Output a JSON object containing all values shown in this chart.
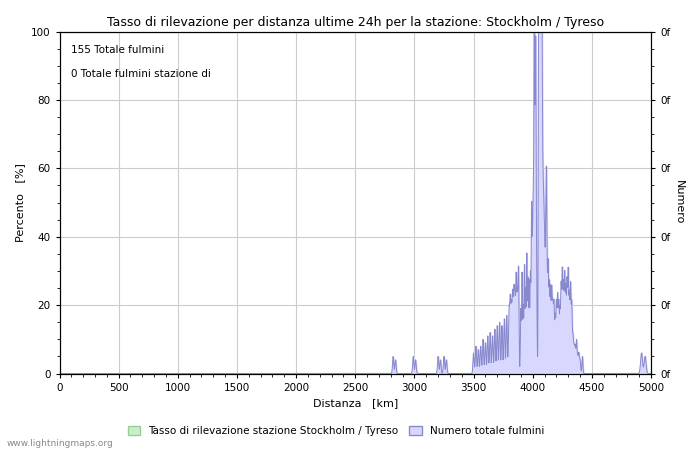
{
  "title": "Tasso di rilevazione per distanza ultime 24h per la stazione: Stockholm / Tyreso",
  "xlabel": "Distanza   [km]",
  "ylabel_left": "Percento   [%]",
  "ylabel_right": "Numero",
  "xlim": [
    0,
    5000
  ],
  "ylim": [
    0,
    100
  ],
  "xticks": [
    0,
    500,
    1000,
    1500,
    2000,
    2500,
    3000,
    3500,
    4000,
    4500,
    5000
  ],
  "yticks_left": [
    0,
    20,
    40,
    60,
    80,
    100
  ],
  "annotation_line1": "155 Totale fulmini",
  "annotation_line2": "0 Totale fulmini stazione di",
  "watermark": "www.lightningmaps.org",
  "legend_label1": "Tasso di rilevazione stazione Stockholm / Tyreso",
  "legend_label2": "Numero totale fulmini",
  "fill_color": "#d8d8ff",
  "fill_edge_color": "#8888cc",
  "bg_color": "#ffffff",
  "grid_color": "#cccccc",
  "title_fontsize": 9,
  "axis_label_fontsize": 8,
  "tick_fontsize": 7.5,
  "annotation_fontsize": 7.5,
  "legend_fontsize": 7.5
}
